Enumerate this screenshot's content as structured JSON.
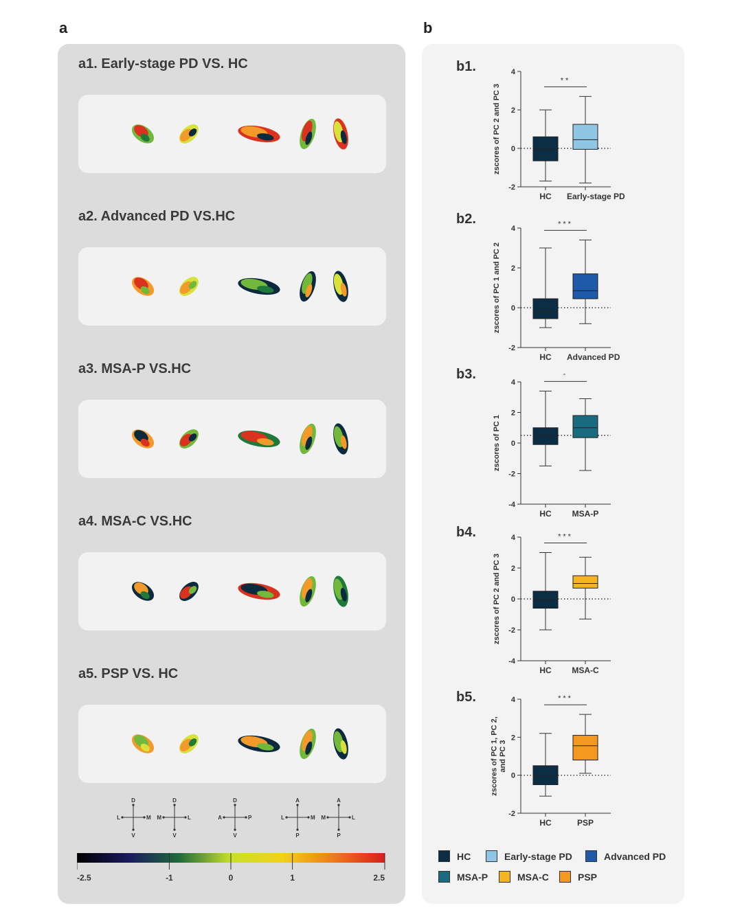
{
  "panel_a": {
    "letter": "a",
    "comparisons": [
      {
        "title": "a1. Early-stage PD VS. HC"
      },
      {
        "title": "a2. Advanced PD VS.HC"
      },
      {
        "title": "a3. MSA-P VS.HC"
      },
      {
        "title": "a4. MSA-C VS.HC"
      },
      {
        "title": "a5. PSP VS. HC"
      }
    ],
    "orientation": {
      "views": [
        {
          "top": "D",
          "bottom": "V",
          "left": "L",
          "right": "M"
        },
        {
          "top": "D",
          "bottom": "V",
          "left": "M",
          "right": "L"
        },
        {
          "top": "D",
          "bottom": "V",
          "left": "A",
          "right": "P"
        },
        {
          "top": "A",
          "bottom": "P",
          "left": "L",
          "right": "M"
        },
        {
          "top": "A",
          "bottom": "P",
          "left": "M",
          "right": "L"
        }
      ]
    },
    "colorbar": {
      "ticks": [
        "-2.5",
        "-1",
        "0",
        "1",
        "2.5"
      ],
      "tick_values": [
        -2.5,
        -1,
        0,
        1,
        2.5
      ],
      "range": [
        -2.5,
        2.5
      ],
      "colors": [
        "#000000",
        "#1a1a5e",
        "#1f6b3a",
        "#c8e02a",
        "#f2d21a",
        "#f07a1a",
        "#d61e1e"
      ]
    }
  },
  "panel_b": {
    "letter": "b",
    "legend": [
      {
        "label": "HC",
        "color": "#0c2e45"
      },
      {
        "label": "Early-stage PD",
        "color": "#8ec6e3"
      },
      {
        "label": "Advanced PD",
        "color": "#1f5aa8"
      },
      {
        "label": "MSA-P",
        "color": "#1a6a80"
      },
      {
        "label": "MSA-C",
        "color": "#f5b523"
      },
      {
        "label": "PSP",
        "color": "#f3991f"
      }
    ]
  },
  "chart_data": [
    {
      "type": "box",
      "label": "b1.",
      "ylabel": "zscores of PC 2 and PC 3",
      "ylim": [
        -2,
        4
      ],
      "yticks": [
        -2,
        0,
        2,
        4
      ],
      "reference_line": 0,
      "significance": "**",
      "groups": [
        {
          "name": "HC",
          "color": "#0c2e45",
          "min": -1.7,
          "q1": -0.65,
          "median": -0.05,
          "q3": 0.6,
          "max": 2.0
        },
        {
          "name": "Early-stage PD",
          "color": "#8ec6e3",
          "min": -1.8,
          "q1": -0.05,
          "median": 0.45,
          "q3": 1.25,
          "max": 2.7
        }
      ]
    },
    {
      "type": "box",
      "label": "b2.",
      "ylabel": "zscores of PC 1 and PC 2",
      "ylim": [
        -2,
        4
      ],
      "yticks": [
        -2,
        0,
        2,
        4
      ],
      "reference_line": 0,
      "significance": "***",
      "groups": [
        {
          "name": "HC",
          "color": "#0c2e45",
          "min": -1.0,
          "q1": -0.55,
          "median": -0.2,
          "q3": 0.45,
          "max": 3.0
        },
        {
          "name": "Advanced PD",
          "color": "#1f5aa8",
          "min": -0.8,
          "q1": 0.45,
          "median": 0.85,
          "q3": 1.7,
          "max": 3.4
        }
      ]
    },
    {
      "type": "box",
      "label": "b3.",
      "ylabel": "zscores of PC 1",
      "ylim": [
        -4,
        4
      ],
      "yticks": [
        -4,
        -2,
        0,
        2,
        4
      ],
      "reference_line": 0.5,
      "significance": "*",
      "groups": [
        {
          "name": "HC",
          "color": "#0c2e45",
          "min": -1.5,
          "q1": -0.1,
          "median": 0.45,
          "q3": 1.0,
          "max": 3.4
        },
        {
          "name": "MSA-P",
          "color": "#1a6a80",
          "min": -1.8,
          "q1": 0.35,
          "median": 1.0,
          "q3": 1.8,
          "max": 2.9
        }
      ]
    },
    {
      "type": "box",
      "label": "b4.",
      "ylabel": "zscores of PC 2 and PC 3",
      "ylim": [
        -4,
        4
      ],
      "yticks": [
        -4,
        -2,
        0,
        2,
        4
      ],
      "reference_line": 0,
      "significance": "***",
      "groups": [
        {
          "name": "HC",
          "color": "#0c2e45",
          "min": -2.0,
          "q1": -0.6,
          "median": -0.05,
          "q3": 0.5,
          "max": 3.0
        },
        {
          "name": "MSA-C",
          "color": "#f5b523",
          "min": -1.3,
          "q1": 0.7,
          "median": 1.0,
          "q3": 1.5,
          "max": 2.7
        }
      ]
    },
    {
      "type": "box",
      "label": "b5.",
      "ylabel": "zscores of PC 1, PC 2, and PC 3",
      "ylim": [
        -2,
        4
      ],
      "yticks": [
        -2,
        0,
        2,
        4
      ],
      "reference_line": 0,
      "significance": "***",
      "groups": [
        {
          "name": "HC",
          "color": "#0c2e45",
          "min": -1.1,
          "q1": -0.5,
          "median": -0.05,
          "q3": 0.5,
          "max": 2.2
        },
        {
          "name": "PSP",
          "color": "#f3991f",
          "min": 0.1,
          "q1": 0.8,
          "median": 1.55,
          "q3": 2.1,
          "max": 3.2
        }
      ]
    }
  ]
}
